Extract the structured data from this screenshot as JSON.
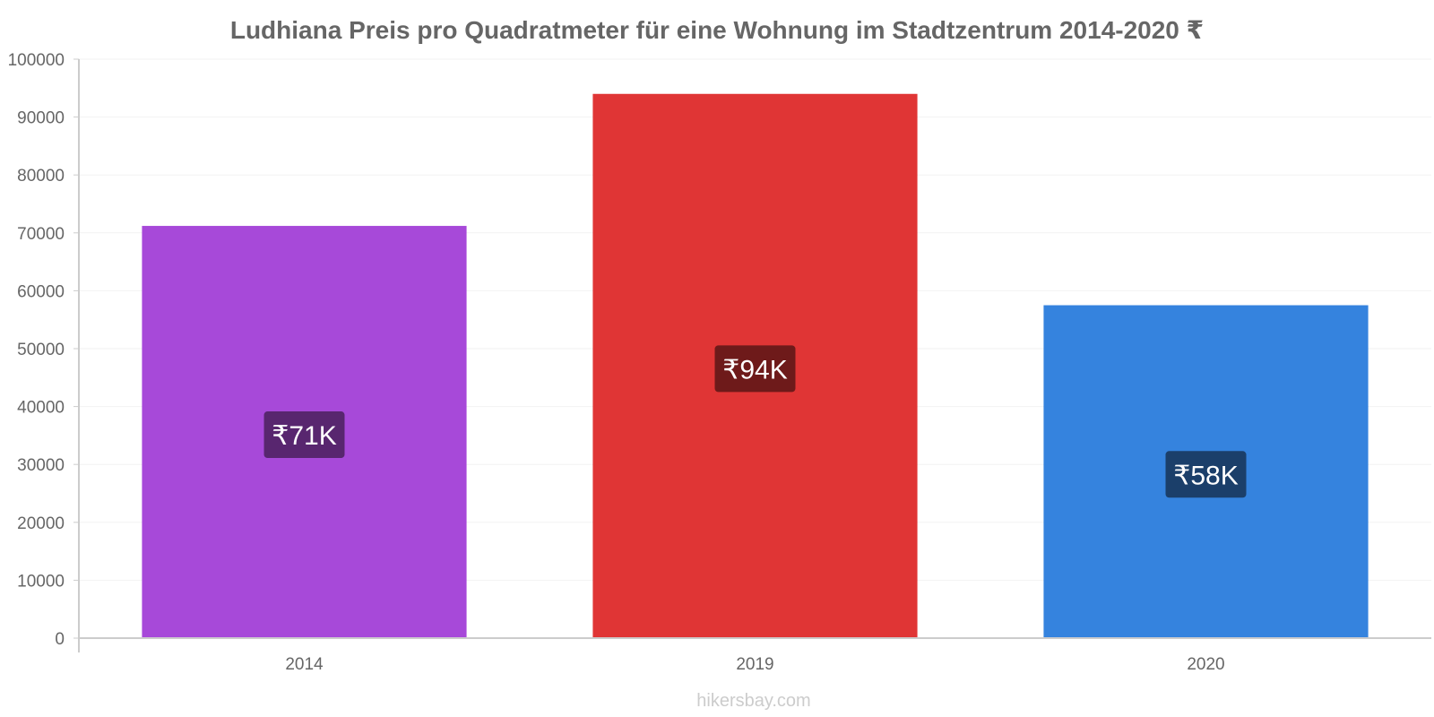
{
  "chart_data": {
    "type": "bar",
    "title": "Ludhiana Preis pro Quadratmeter für eine Wohnung im Stadtzentrum 2014-2020 ₹",
    "categories": [
      "2014",
      "2019",
      "2020"
    ],
    "values": [
      71200,
      94000,
      57500
    ],
    "value_labels": [
      "₹71K",
      "₹94K",
      "₹58K"
    ],
    "colors": [
      "#a749d9",
      "#e03535",
      "#3583de"
    ],
    "label_colors": [
      "#58266f",
      "#6e1a1a",
      "#1b3f6a"
    ],
    "ylim": [
      0,
      100000
    ],
    "yticks": [
      "0",
      "10000",
      "20000",
      "30000",
      "40000",
      "50000",
      "60000",
      "70000",
      "80000",
      "90000",
      "100000"
    ],
    "xlabel": "",
    "ylabel": "",
    "grid": true,
    "watermark": "hikersbay.com"
  }
}
